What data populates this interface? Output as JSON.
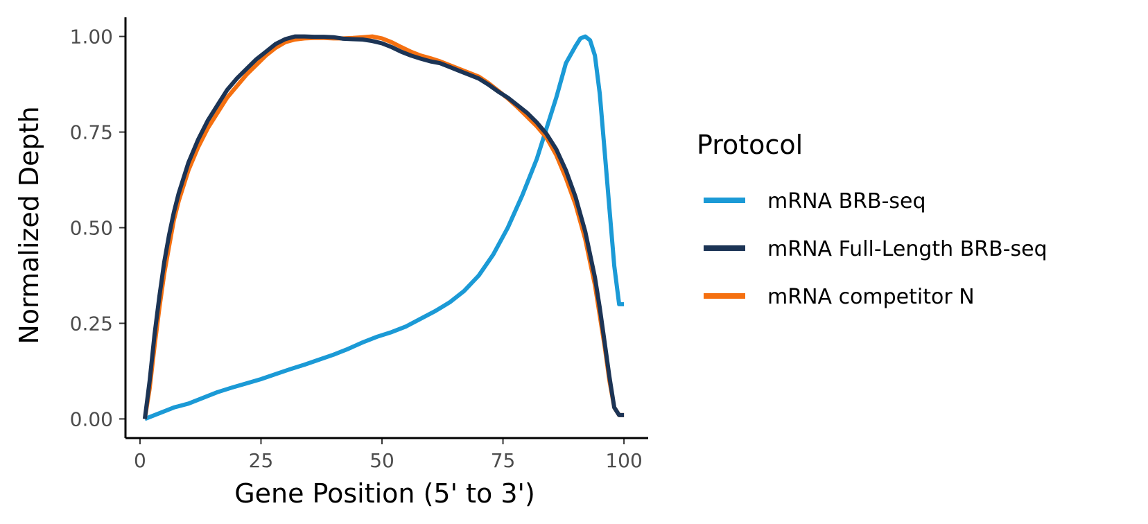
{
  "chart_data": {
    "type": "line",
    "xlabel": "Gene Position (5' to 3')",
    "ylabel": "Normalized Depth",
    "xlim": [
      -3,
      105
    ],
    "ylim": [
      -0.05,
      1.05
    ],
    "x_ticks": [
      0,
      25,
      50,
      75,
      100
    ],
    "x_tick_labels": [
      "0",
      "25",
      "50",
      "75",
      "100"
    ],
    "y_ticks": [
      0,
      0.25,
      0.5,
      0.75,
      1.0
    ],
    "y_tick_labels": [
      "0.00",
      "0.25",
      "0.50",
      "0.75",
      "1.00"
    ],
    "grid": false,
    "legend": {
      "title": "Protocol",
      "position": "right"
    },
    "series": [
      {
        "name": "mRNA BRB-seq",
        "color": "#1b9ad6",
        "x": [
          1,
          3,
          5,
          7,
          10,
          13,
          16,
          19,
          22,
          25,
          28,
          31,
          34,
          37,
          40,
          43,
          46,
          49,
          52,
          55,
          58,
          61,
          64,
          67,
          70,
          73,
          76,
          79,
          82,
          84,
          86,
          88,
          90,
          91,
          92,
          93,
          94,
          95,
          96,
          97,
          98,
          99,
          100
        ],
        "y": [
          0.0,
          0.01,
          0.02,
          0.03,
          0.04,
          0.055,
          0.07,
          0.082,
          0.093,
          0.104,
          0.117,
          0.13,
          0.142,
          0.155,
          0.168,
          0.183,
          0.2,
          0.215,
          0.227,
          0.242,
          0.262,
          0.282,
          0.305,
          0.335,
          0.375,
          0.43,
          0.5,
          0.585,
          0.68,
          0.76,
          0.84,
          0.93,
          0.975,
          0.995,
          1.0,
          0.99,
          0.95,
          0.85,
          0.7,
          0.55,
          0.4,
          0.3,
          0.3
        ]
      },
      {
        "name": "mRNA Full-Length BRB-seq",
        "color": "#1c3455",
        "x": [
          1,
          2,
          3,
          4,
          5,
          6,
          7,
          8,
          10,
          12,
          14,
          16,
          18,
          20,
          22,
          24,
          26,
          28,
          30,
          32,
          34,
          36,
          38,
          40,
          42,
          44,
          46,
          48,
          50,
          52,
          54,
          56,
          58,
          60,
          62,
          64,
          66,
          68,
          70,
          72,
          74,
          76,
          78,
          80,
          82,
          84,
          86,
          88,
          90,
          92,
          94,
          95,
          96,
          97,
          98,
          99,
          100
        ],
        "y": [
          0.0,
          0.1,
          0.22,
          0.32,
          0.41,
          0.48,
          0.54,
          0.59,
          0.67,
          0.73,
          0.78,
          0.82,
          0.86,
          0.89,
          0.915,
          0.94,
          0.96,
          0.98,
          0.993,
          1.0,
          1.0,
          0.999,
          0.999,
          0.998,
          0.994,
          0.993,
          0.992,
          0.988,
          0.982,
          0.972,
          0.96,
          0.95,
          0.942,
          0.935,
          0.93,
          0.92,
          0.91,
          0.9,
          0.89,
          0.874,
          0.856,
          0.84,
          0.82,
          0.8,
          0.775,
          0.745,
          0.705,
          0.65,
          0.58,
          0.49,
          0.37,
          0.29,
          0.2,
          0.11,
          0.03,
          0.01,
          0.01
        ]
      },
      {
        "name": "mRNA competitor N",
        "color": "#f57010",
        "x": [
          1,
          2,
          3,
          4,
          5,
          6,
          7,
          8,
          10,
          12,
          14,
          16,
          18,
          20,
          22,
          24,
          26,
          28,
          30,
          32,
          34,
          36,
          38,
          40,
          42,
          44,
          46,
          48,
          50,
          52,
          54,
          56,
          58,
          60,
          62,
          64,
          66,
          68,
          70,
          72,
          74,
          76,
          78,
          80,
          82,
          84,
          86,
          88,
          90,
          92,
          94,
          95,
          96,
          97,
          98,
          99,
          100
        ],
        "y": [
          0.0,
          0.08,
          0.19,
          0.29,
          0.38,
          0.45,
          0.52,
          0.57,
          0.65,
          0.71,
          0.76,
          0.8,
          0.84,
          0.87,
          0.9,
          0.925,
          0.95,
          0.97,
          0.985,
          0.992,
          0.995,
          0.996,
          0.996,
          0.995,
          0.995,
          0.996,
          0.998,
          1.0,
          0.995,
          0.985,
          0.972,
          0.96,
          0.95,
          0.943,
          0.935,
          0.925,
          0.915,
          0.905,
          0.895,
          0.878,
          0.858,
          0.838,
          0.815,
          0.79,
          0.765,
          0.735,
          0.69,
          0.63,
          0.56,
          0.47,
          0.35,
          0.27,
          0.19,
          0.1,
          0.03,
          0.01,
          0.01
        ]
      }
    ]
  }
}
